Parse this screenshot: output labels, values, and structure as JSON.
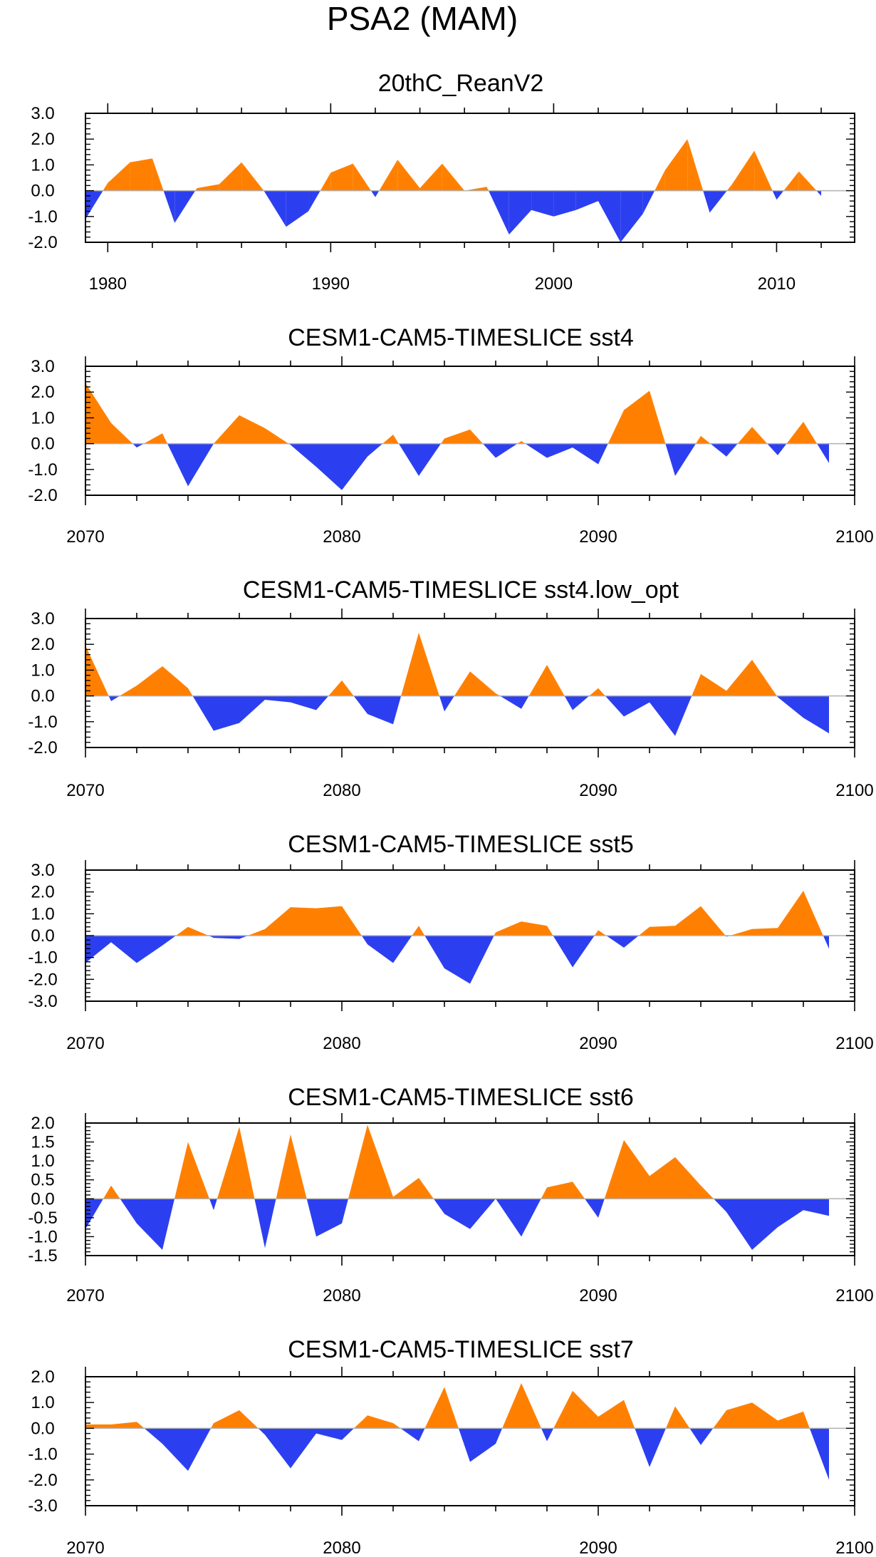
{
  "figure_title": "PSA2 (MAM)",
  "colors": {
    "positive": "#ff8000",
    "negative": "#2c3ff0",
    "axis": "#000000",
    "zero_line": "#b0b0b0"
  },
  "chart_data": [
    {
      "type": "area",
      "title": "20thC_ReanV2",
      "x_start": 1979,
      "xlim": [
        1979,
        2013.5
      ],
      "xticks": [
        "1980",
        "1990",
        "2000",
        "2010"
      ],
      "xtick_values": [
        1980,
        1990,
        2000,
        2010
      ],
      "ylim": [
        -2.0,
        3.0
      ],
      "yticks": [
        "3.0",
        "2.0",
        "1.0",
        "0.0",
        "-1.0",
        "-2.0"
      ],
      "ytick_values": [
        3,
        2,
        1,
        0,
        -1,
        -2
      ],
      "values": [
        -1.1,
        0.3,
        1.1,
        1.25,
        -1.25,
        0.1,
        0.25,
        1.1,
        0.0,
        -1.4,
        -0.8,
        0.7,
        1.05,
        -0.25,
        1.2,
        0.1,
        1.05,
        0.0,
        0.15,
        -1.7,
        -0.75,
        -1.0,
        -0.75,
        -0.4,
        -2.0,
        -0.9,
        0.8,
        2.0,
        -0.85,
        0.25,
        1.55,
        -0.35,
        0.75,
        -0.2
      ]
    },
    {
      "type": "area",
      "title": "CESM1-CAM5-TIMESLICE sst4",
      "x_start": 2070,
      "xlim": [
        2070,
        2100
      ],
      "xticks": [
        "2070",
        "2080",
        "2090",
        "2100"
      ],
      "xtick_values": [
        2070,
        2080,
        2090,
        2100
      ],
      "ylim": [
        -2.0,
        3.0
      ],
      "yticks": [
        "3.0",
        "2.0",
        "1.0",
        "0.0",
        "-1.0",
        "-2.0"
      ],
      "ytick_values": [
        3,
        2,
        1,
        0,
        -1,
        -2
      ],
      "values": [
        2.35,
        0.8,
        -0.15,
        0.4,
        -1.65,
        0.0,
        1.1,
        0.6,
        -0.05,
        -0.9,
        -1.8,
        -0.5,
        0.35,
        -1.25,
        0.2,
        0.55,
        -0.55,
        0.1,
        -0.55,
        -0.15,
        -0.8,
        1.3,
        2.05,
        -1.25,
        0.3,
        -0.5,
        0.65,
        -0.45,
        0.85,
        -0.75
      ]
    },
    {
      "type": "area",
      "title": "CESM1-CAM5-TIMESLICE sst4.low_opt",
      "x_start": 2070,
      "xlim": [
        2070,
        2100
      ],
      "xticks": [
        "2070",
        "2080",
        "2090",
        "2100"
      ],
      "xtick_values": [
        2070,
        2080,
        2090,
        2100
      ],
      "ylim": [
        -2.0,
        3.0
      ],
      "yticks": [
        "3.0",
        "2.0",
        "1.0",
        "0.0",
        "-1.0",
        "-2.0"
      ],
      "ytick_values": [
        3,
        2,
        1,
        0,
        -1,
        -2
      ],
      "values": [
        1.95,
        -0.2,
        0.4,
        1.15,
        0.3,
        -1.35,
        -1.05,
        -0.15,
        -0.25,
        -0.55,
        0.6,
        -0.7,
        -1.1,
        2.45,
        -0.6,
        0.95,
        0.1,
        -0.5,
        1.2,
        -0.55,
        0.3,
        -0.8,
        -0.25,
        -1.55,
        0.85,
        0.2,
        1.4,
        -0.05,
        -0.85,
        -1.45
      ]
    },
    {
      "type": "area",
      "title": "CESM1-CAM5-TIMESLICE sst5",
      "x_start": 2070,
      "xlim": [
        2070,
        2100
      ],
      "xticks": [
        "2070",
        "2080",
        "2090",
        "2100"
      ],
      "xtick_values": [
        2070,
        2080,
        2090,
        2100
      ],
      "ylim": [
        -3.0,
        3.0
      ],
      "yticks": [
        "3.0",
        "2.0",
        "1.0",
        "0.0",
        "-1.0",
        "-2.0",
        "-3.0"
      ],
      "ytick_values": [
        3,
        2,
        1,
        0,
        -1,
        -2,
        -3
      ],
      "values": [
        -1.25,
        -0.3,
        -1.25,
        -0.45,
        0.4,
        -0.1,
        -0.15,
        0.3,
        1.3,
        1.25,
        1.35,
        -0.4,
        -1.25,
        0.45,
        -1.5,
        -2.2,
        0.15,
        0.65,
        0.45,
        -1.45,
        0.25,
        -0.55,
        0.4,
        0.45,
        1.35,
        -0.05,
        0.3,
        0.35,
        2.05,
        -0.6
      ]
    },
    {
      "type": "area",
      "title": "CESM1-CAM5-TIMESLICE sst6",
      "x_start": 2070,
      "xlim": [
        2070,
        2100
      ],
      "xticks": [
        "2070",
        "2080",
        "2090",
        "2100"
      ],
      "xtick_values": [
        2070,
        2080,
        2090,
        2100
      ],
      "ylim": [
        -1.5,
        2.0
      ],
      "yticks": [
        "2.0",
        "1.5",
        "1.0",
        "0.5",
        "0.0",
        "-0.5",
        "-1.0",
        "-1.5"
      ],
      "ytick_values": [
        2,
        1.5,
        1,
        0.5,
        0,
        -0.5,
        -1,
        -1.5
      ],
      "values": [
        -0.8,
        0.35,
        -0.65,
        -1.35,
        1.5,
        -0.3,
        1.9,
        -1.3,
        1.7,
        -1.0,
        -0.65,
        1.95,
        0.05,
        0.55,
        -0.4,
        -0.8,
        0.0,
        -1.0,
        0.3,
        0.45,
        -0.5,
        1.55,
        0.6,
        1.1,
        0.35,
        -0.35,
        -1.35,
        -0.75,
        -0.3,
        -0.45
      ]
    },
    {
      "type": "area",
      "title": "CESM1-CAM5-TIMESLICE sst7",
      "x_start": 2070,
      "xlim": [
        2070,
        2100
      ],
      "xticks": [
        "2070",
        "2080",
        "2090",
        "2100"
      ],
      "xtick_values": [
        2070,
        2080,
        2090,
        2100
      ],
      "ylim": [
        -3.0,
        2.0
      ],
      "yticks": [
        "2.0",
        "1.0",
        "0.0",
        "-1.0",
        "-2.0",
        "-3.0"
      ],
      "ytick_values": [
        2,
        1,
        0,
        -1,
        -2,
        -3
      ],
      "values": [
        0.15,
        0.15,
        0.25,
        -0.6,
        -1.65,
        0.2,
        0.7,
        -0.25,
        -1.55,
        -0.2,
        -0.45,
        0.5,
        0.2,
        -0.5,
        1.6,
        -1.3,
        -0.6,
        1.75,
        -0.5,
        1.45,
        0.45,
        1.1,
        -1.5,
        0.85,
        -0.65,
        0.7,
        1.0,
        0.3,
        0.65,
        -2.0
      ]
    }
  ]
}
